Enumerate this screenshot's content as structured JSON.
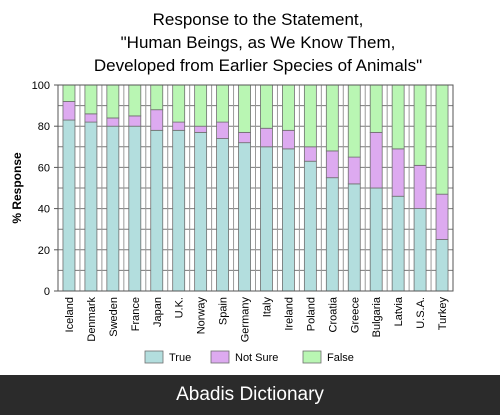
{
  "chart_data": {
    "type": "bar",
    "stacked": true,
    "title": "Response to the Statement,",
    "subtitle": [
      "\"Human Beings, as We Know Them,",
      "Developed from Earlier Species of Animals\""
    ],
    "xlabel": "",
    "ylabel": "% Response",
    "ylim": [
      0,
      100
    ],
    "yticks": [
      0,
      20,
      40,
      60,
      80,
      100
    ],
    "grid": true,
    "legend_position": "bottom",
    "categories": [
      "Iceland",
      "Denmark",
      "Sweden",
      "France",
      "Japan",
      "U.K.",
      "Norway",
      "Spain",
      "Germany",
      "Italy",
      "Ireland",
      "Poland",
      "Croatia",
      "Greece",
      "Bulgaria",
      "Latvia",
      "U.S.A.",
      "Turkey"
    ],
    "series": [
      {
        "name": "True",
        "color": "#b3dede",
        "values": [
          83,
          82,
          80,
          80,
          78,
          78,
          77,
          74,
          72,
          70,
          69,
          63,
          55,
          52,
          50,
          46,
          40,
          25
        ]
      },
      {
        "name": "Not Sure",
        "color": "#ddaaf0",
        "values": [
          9,
          4,
          4,
          5,
          10,
          4,
          3,
          8,
          5,
          9,
          9,
          7,
          13,
          13,
          27,
          23,
          21,
          22
        ]
      },
      {
        "name": "False",
        "color": "#b9f6b3",
        "values": [
          8,
          14,
          16,
          15,
          12,
          18,
          20,
          18,
          23,
          21,
          22,
          30,
          32,
          35,
          23,
          31,
          39,
          53
        ]
      }
    ]
  },
  "footer": {
    "text": "Abadis Dictionary"
  }
}
